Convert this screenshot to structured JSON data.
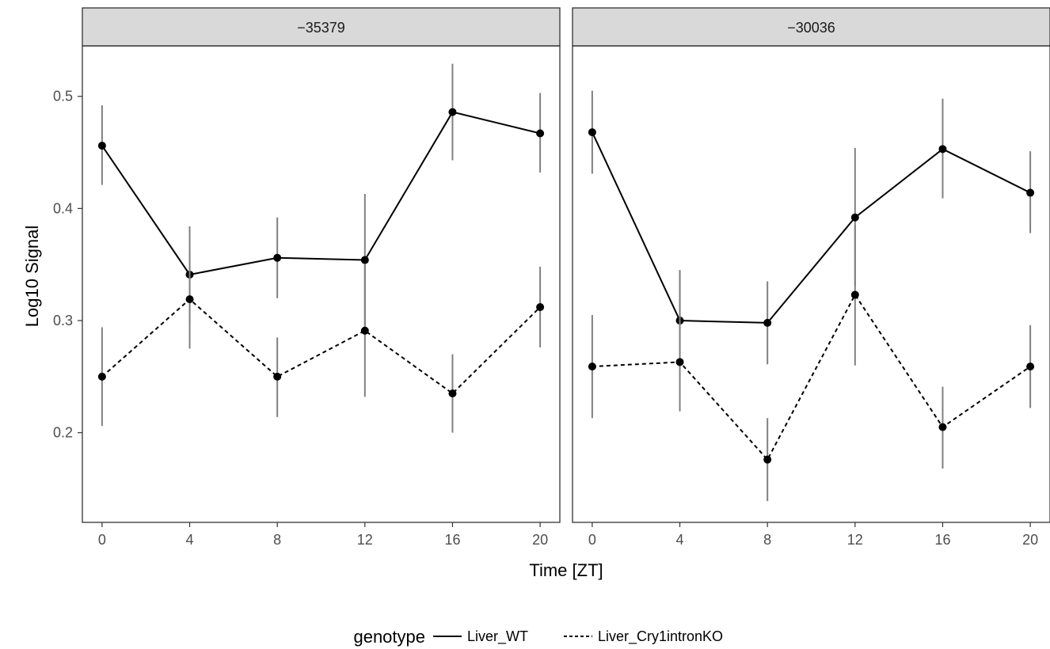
{
  "chart_data": {
    "type": "line",
    "xlabel": "Time [ZT]",
    "ylabel": "Log10 Signal",
    "x_ticks": [
      0,
      4,
      8,
      12,
      16,
      20
    ],
    "y_ticks": [
      0.2,
      0.3,
      0.4,
      0.5
    ],
    "xlim": [
      -0.9,
      20.9
    ],
    "ylim": [
      0.12,
      0.545
    ],
    "legend": {
      "title": "genotype",
      "position": "bottom",
      "entries": [
        {
          "name": "Liver_WT",
          "linetype": "solid"
        },
        {
          "name": "Liver_Cry1intronKO",
          "linetype": "dashed"
        }
      ]
    },
    "colors": {
      "line": "#000000",
      "errorbar": "#808080",
      "strip": "#d9d9d9"
    },
    "panels": [
      {
        "title": "−35379",
        "series": [
          {
            "name": "Liver_WT",
            "linetype": "solid",
            "x": [
              0,
              4,
              8,
              12,
              16,
              20
            ],
            "y": [
              0.456,
              0.341,
              0.356,
              0.354,
              0.486,
              0.467
            ],
            "ymin": [
              0.421,
              0.298,
              0.32,
              0.294,
              0.443,
              0.432
            ],
            "ymax": [
              0.492,
              0.384,
              0.392,
              0.413,
              0.529,
              0.503
            ]
          },
          {
            "name": "Liver_Cry1intronKO",
            "linetype": "dashed",
            "x": [
              0,
              4,
              8,
              12,
              16,
              20
            ],
            "y": [
              0.25,
              0.319,
              0.25,
              0.291,
              0.235,
              0.312
            ],
            "ymin": [
              0.206,
              0.275,
              0.214,
              0.232,
              0.2,
              0.276
            ],
            "ymax": [
              0.294,
              0.363,
              0.285,
              0.35,
              0.27,
              0.348
            ]
          }
        ]
      },
      {
        "title": "−30036",
        "series": [
          {
            "name": "Liver_WT",
            "linetype": "solid",
            "x": [
              0,
              4,
              8,
              12,
              16,
              20
            ],
            "y": [
              0.468,
              0.3,
              0.298,
              0.392,
              0.453,
              0.414
            ],
            "ymin": [
              0.431,
              0.256,
              0.261,
              0.331,
              0.409,
              0.378
            ],
            "ymax": [
              0.505,
              0.345,
              0.335,
              0.454,
              0.498,
              0.451
            ]
          },
          {
            "name": "Liver_Cry1intronKO",
            "linetype": "dashed",
            "x": [
              0,
              4,
              8,
              12,
              16,
              20
            ],
            "y": [
              0.259,
              0.263,
              0.176,
              0.323,
              0.205,
              0.259
            ],
            "ymin": [
              0.213,
              0.219,
              0.139,
              0.26,
              0.168,
              0.222
            ],
            "ymax": [
              0.305,
              0.345,
              0.213,
              0.385,
              0.241,
              0.296
            ]
          }
        ]
      }
    ]
  }
}
